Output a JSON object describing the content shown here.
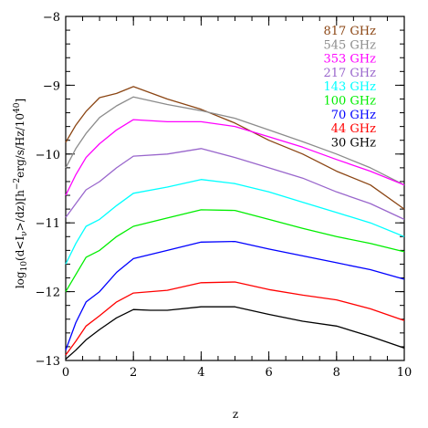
{
  "chart_data": {
    "type": "line",
    "title": "",
    "xlabel": "z",
    "ylabel": "log₁₀(d<I_ν>/dz)[h⁻²erg/s/Hz/10⁴⁰]",
    "ylabel_parts": {
      "p1": "log",
      "p1sub": "10",
      "p2": "(d<I",
      "p2sub": "ν",
      "p3": ">/dz)[h",
      "p3sup": "−2",
      "p4": "erg/s/Hz/10",
      "p4sup": "40",
      "p5": "]"
    },
    "xlim": [
      0,
      10
    ],
    "ylim": [
      -13,
      -8
    ],
    "x_ticks": [
      0,
      2,
      4,
      6,
      8,
      10
    ],
    "x_tick_labels": [
      "0",
      "2",
      "4",
      "6",
      "8",
      "10"
    ],
    "y_ticks": [
      -13,
      -12,
      -11,
      -10,
      -9,
      -8
    ],
    "y_tick_labels": [
      "−13",
      "−12",
      "−11",
      "−10",
      "−9",
      "−8"
    ],
    "x_minor_step": 0.5,
    "y_minor_step": 0.2,
    "grid": false,
    "legend_position": "top-right",
    "series": [
      {
        "name": "817 GHz",
        "color": "#8b4513",
        "x": [
          0,
          0.3,
          0.6,
          1.0,
          1.5,
          2.0,
          3.0,
          4.0,
          5.0,
          6.0,
          7.0,
          8.0,
          9.0,
          10.0
        ],
        "y": [
          -9.83,
          -9.58,
          -9.38,
          -9.18,
          -9.12,
          -9.02,
          -9.2,
          -9.35,
          -9.55,
          -9.8,
          -10.0,
          -10.25,
          -10.45,
          -10.8
        ]
      },
      {
        "name": "545 GHz",
        "color": "#8c8c8c",
        "x": [
          0,
          0.3,
          0.6,
          1.0,
          1.5,
          2.0,
          3.0,
          4.0,
          5.0,
          6.0,
          7.0,
          8.0,
          9.0,
          10.0
        ],
        "y": [
          -10.2,
          -9.92,
          -9.7,
          -9.47,
          -9.3,
          -9.17,
          -9.28,
          -9.37,
          -9.48,
          -9.65,
          -9.82,
          -10.0,
          -10.2,
          -10.45
        ]
      },
      {
        "name": "353 GHz",
        "color": "#ff00ff",
        "x": [
          0,
          0.3,
          0.6,
          1.0,
          1.5,
          2.0,
          3.0,
          4.0,
          5.0,
          6.0,
          7.0,
          8.0,
          9.0,
          10.0
        ],
        "y": [
          -10.6,
          -10.3,
          -10.05,
          -9.85,
          -9.65,
          -9.5,
          -9.53,
          -9.53,
          -9.6,
          -9.75,
          -9.9,
          -10.08,
          -10.25,
          -10.45
        ]
      },
      {
        "name": "217 GHz",
        "color": "#9966cc",
        "x": [
          0,
          0.3,
          0.6,
          1.0,
          1.5,
          2.0,
          3.0,
          4.0,
          5.0,
          6.0,
          7.0,
          8.0,
          9.0,
          10.0
        ],
        "y": [
          -10.92,
          -10.72,
          -10.52,
          -10.4,
          -10.2,
          -10.03,
          -10.0,
          -9.92,
          -10.05,
          -10.2,
          -10.35,
          -10.55,
          -10.72,
          -10.95
        ]
      },
      {
        "name": "143 GHz",
        "color": "#00ffff",
        "x": [
          0,
          0.3,
          0.6,
          1.0,
          1.5,
          2.0,
          3.0,
          4.0,
          5.0,
          6.0,
          7.0,
          8.0,
          9.0,
          10.0
        ],
        "y": [
          -11.6,
          -11.3,
          -11.05,
          -10.95,
          -10.75,
          -10.57,
          -10.48,
          -10.37,
          -10.43,
          -10.55,
          -10.7,
          -10.85,
          -11.0,
          -11.2
        ]
      },
      {
        "name": "100 GHz",
        "color": "#00ee00",
        "x": [
          0,
          0.3,
          0.6,
          1.0,
          1.5,
          2.0,
          3.0,
          4.0,
          5.0,
          6.0,
          7.0,
          8.0,
          9.0,
          10.0
        ],
        "y": [
          -12.0,
          -11.75,
          -11.5,
          -11.4,
          -11.2,
          -11.05,
          -10.93,
          -10.81,
          -10.82,
          -10.95,
          -11.08,
          -11.2,
          -11.3,
          -11.42
        ]
      },
      {
        "name": "70 GHz",
        "color": "#0000ff",
        "x": [
          0,
          0.3,
          0.6,
          1.0,
          1.5,
          2.0,
          3.0,
          4.0,
          5.0,
          6.0,
          7.0,
          8.0,
          9.0,
          10.0
        ],
        "y": [
          -12.85,
          -12.45,
          -12.15,
          -12.0,
          -11.72,
          -11.52,
          -11.4,
          -11.28,
          -11.27,
          -11.38,
          -11.48,
          -11.58,
          -11.68,
          -11.82
        ]
      },
      {
        "name": "44 GHz",
        "color": "#ff0000",
        "x": [
          0,
          0.3,
          0.6,
          1.0,
          1.5,
          2.0,
          3.0,
          4.0,
          5.0,
          6.0,
          7.0,
          8.0,
          9.0,
          10.0
        ],
        "y": [
          -12.92,
          -12.72,
          -12.5,
          -12.35,
          -12.15,
          -12.02,
          -11.98,
          -11.87,
          -11.86,
          -11.97,
          -12.05,
          -12.12,
          -12.25,
          -12.42
        ]
      },
      {
        "name": "30 GHz",
        "color": "#000000",
        "x": [
          0,
          0.3,
          0.6,
          1.0,
          1.5,
          2.0,
          2.5,
          3.0,
          4.0,
          5.0,
          6.0,
          7.0,
          8.0,
          9.0,
          10.0
        ],
        "y": [
          -12.98,
          -12.85,
          -12.7,
          -12.55,
          -12.38,
          -12.26,
          -12.27,
          -12.27,
          -12.22,
          -12.22,
          -12.33,
          -12.43,
          -12.5,
          -12.65,
          -12.82
        ]
      }
    ]
  }
}
